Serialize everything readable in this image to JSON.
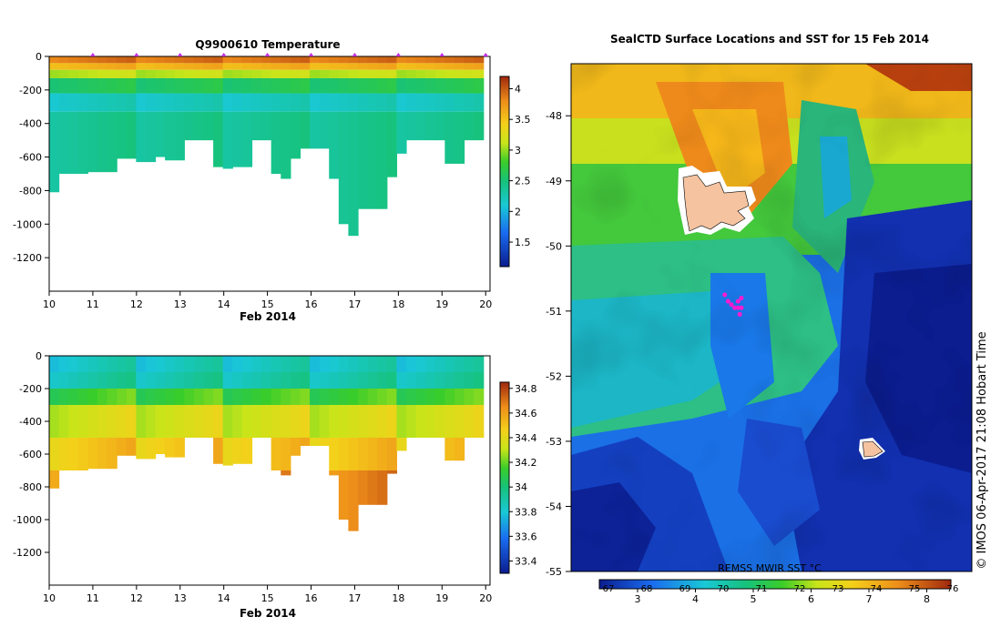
{
  "chart_data": [
    {
      "type": "heatmap",
      "title": "Q9900610  Temperature",
      "xlabel": "Feb 2014",
      "ylabel": "",
      "x_ticks": [
        "10",
        "11",
        "12",
        "13",
        "14",
        "15",
        "16",
        "17",
        "18",
        "19",
        "20"
      ],
      "y_ticks": [
        "0",
        "-200",
        "-400",
        "-600",
        "-800",
        "-1000",
        "-1200"
      ],
      "xlim": [
        10,
        20.1
      ],
      "ylim": [
        -1400,
        0
      ],
      "colorbar_ticks": [
        "1.5",
        "2",
        "2.5",
        "3",
        "3.5",
        "4"
      ],
      "colorbar_range": [
        1.1,
        4.2
      ],
      "profile_max_depth": [
        810,
        700,
        700,
        700,
        690,
        690,
        690,
        610,
        610,
        630,
        630,
        600,
        620,
        620,
        500,
        500,
        500,
        660,
        670,
        660,
        660,
        500,
        500,
        700,
        730,
        610,
        550,
        550,
        550,
        730,
        1000,
        1070,
        910,
        910,
        910,
        720,
        580,
        500,
        500,
        500,
        500,
        640,
        640,
        500,
        500
      ],
      "temp_layers": [
        {
          "depth": 0,
          "value": 3.9
        },
        {
          "depth": -40,
          "value": 3.6
        },
        {
          "depth": -80,
          "value": 3.1
        },
        {
          "depth": -130,
          "value": 2.6
        },
        {
          "depth": -220,
          "value": 2.2
        },
        {
          "depth": -330,
          "value": 2.4
        },
        {
          "depth": -1100,
          "value": 2.4
        }
      ],
      "grid": false
    },
    {
      "type": "heatmap",
      "title": "",
      "xlabel": "Feb 2014",
      "ylabel": "",
      "x_ticks": [
        "10",
        "11",
        "12",
        "13",
        "14",
        "15",
        "16",
        "17",
        "18",
        "19",
        "20"
      ],
      "y_ticks": [
        "0",
        "-200",
        "-400",
        "-600",
        "-800",
        "-1000",
        "-1200"
      ],
      "xlim": [
        10,
        20.1
      ],
      "ylim": [
        -1400,
        0
      ],
      "colorbar_ticks": [
        "33.4",
        "33.6",
        "33.8",
        "34",
        "34.2",
        "34.4",
        "34.6",
        "34.8"
      ],
      "colorbar_range": [
        33.3,
        34.85
      ],
      "salinity_layers": [
        {
          "depth": 0,
          "value": 33.85
        },
        {
          "depth": -100,
          "value": 33.9
        },
        {
          "depth": -200,
          "value": 34.15
        },
        {
          "depth": -300,
          "value": 34.35
        },
        {
          "depth": -500,
          "value": 34.5
        },
        {
          "depth": -700,
          "value": 34.65
        },
        {
          "depth": -1100,
          "value": 34.75
        }
      ],
      "grid": false
    },
    {
      "type": "heatmap",
      "title": "SealCTD Surface Locations and SST for 15 Feb 2014",
      "xlabel": "",
      "ylabel": "",
      "y_ticks": [
        "-48",
        "-49",
        "-50",
        "-51",
        "-52",
        "-53",
        "-54",
        "-55"
      ],
      "ylim": [
        -55,
        -47.2
      ],
      "colorbar_label": "REMSS MWIR SST °C",
      "colorbar_ticks_bottom": [
        "3",
        "4",
        "5",
        "6",
        "7",
        "8"
      ],
      "colorbar_ticks_top": [
        "67",
        "68",
        "69",
        "70",
        "71",
        "72",
        "73",
        "74",
        "75",
        "76"
      ],
      "locations": [
        [
          -50.85,
          68.2
        ],
        [
          -50.9,
          68.3
        ],
        [
          -50.95,
          68.4
        ],
        [
          -50.95,
          68.5
        ],
        [
          -50.85,
          68.5
        ],
        [
          -51.05,
          68.55
        ],
        [
          -50.95,
          68.6
        ],
        [
          -50.8,
          68.6
        ],
        [
          -50.75,
          68.1
        ]
      ],
      "grid": false
    }
  ],
  "watermark": "© IMOS 06-Apr-2017 21:08 Hobart Time"
}
